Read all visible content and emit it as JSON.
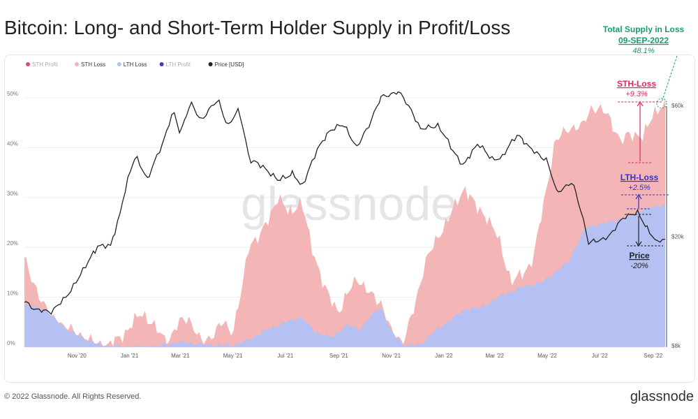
{
  "page": {
    "title": "Bitcoin: Long- and Short-Term Holder Supply in Profit/Loss",
    "footer_copyright": "© 2022 Glassnode. All Rights Reserved.",
    "footer_logo": "glassnode",
    "watermark": "glassnode"
  },
  "colors": {
    "sth_profit": "#e4457c",
    "sth_loss": "#f4b5b6",
    "lth_loss": "#b4c1f2",
    "lth_profit": "#3b3fc7",
    "price": "#222222",
    "annotation_green": "#1a9c6a",
    "annotation_pink": "#e4245c",
    "annotation_blue": "#3730c9"
  },
  "legend": [
    {
      "label": "STH Profit",
      "key": "sth_profit",
      "active": false
    },
    {
      "label": "STH Loss",
      "key": "sth_loss",
      "active": true
    },
    {
      "label": "LTH Loss",
      "key": "lth_loss",
      "active": true
    },
    {
      "label": "LTH Profit",
      "key": "lth_profit",
      "active": false
    },
    {
      "label": "Price [USD]",
      "key": "price",
      "active": true
    }
  ],
  "annotations": {
    "total_title": "Total Supply in Loss",
    "total_date": "09-SEP-2022",
    "total_value": "48.1%",
    "sth_title": "STH-Loss",
    "sth_value": "+9.3%",
    "lth_title": "LTH-Loss",
    "lth_value": "+2.5%",
    "price_title": "Price",
    "price_value": "-20%"
  },
  "chart_data": {
    "type": "area",
    "x_tick_labels": [
      "Nov '20",
      "Jan '21",
      "Mar '21",
      "May '21",
      "Jul '21",
      "Sep '21",
      "Nov '21",
      "Jan '22",
      "Mar '22",
      "May '22",
      "Jul '22",
      "Sep '22"
    ],
    "y_left_ticks": [
      "0%",
      "10%",
      "20%",
      "30%",
      "40%",
      "50%"
    ],
    "y_left_range": [
      0,
      50
    ],
    "y_right_ticks": [
      "$8k",
      "$20k",
      "$60k"
    ],
    "y_right_scale": "log",
    "y_right_range": [
      8000,
      70000
    ],
    "x_range": [
      "2020-09-01",
      "2022-09-15"
    ],
    "series": [
      {
        "name": "LTH Loss",
        "points": [
          [
            "2020-09-01",
            8.5
          ],
          [
            "2020-09-25",
            7.5
          ],
          [
            "2020-10-10",
            5
          ],
          [
            "2020-10-25",
            3
          ],
          [
            "2020-11-15",
            1.2
          ],
          [
            "2020-12-01",
            0.2
          ],
          [
            "2021-01-01",
            0
          ],
          [
            "2021-02-01",
            0.2
          ],
          [
            "2021-03-01",
            1
          ],
          [
            "2021-04-01",
            0.5
          ],
          [
            "2021-05-01",
            0.3
          ],
          [
            "2021-05-20",
            1.5
          ],
          [
            "2021-06-10",
            3.5
          ],
          [
            "2021-07-01",
            5
          ],
          [
            "2021-07-20",
            6
          ],
          [
            "2021-08-05",
            3
          ],
          [
            "2021-08-25",
            2
          ],
          [
            "2021-09-10",
            4.5
          ],
          [
            "2021-09-25",
            3.5
          ],
          [
            "2021-10-10",
            6.5
          ],
          [
            "2021-10-20",
            8
          ],
          [
            "2021-11-01",
            3
          ],
          [
            "2021-11-15",
            0.5
          ],
          [
            "2021-11-25",
            0.3
          ],
          [
            "2021-12-05",
            0.5
          ],
          [
            "2021-12-20",
            3
          ],
          [
            "2022-01-05",
            5
          ],
          [
            "2022-01-25",
            7.5
          ],
          [
            "2022-02-15",
            8
          ],
          [
            "2022-03-05",
            10
          ],
          [
            "2022-04-01",
            12
          ],
          [
            "2022-04-25",
            13
          ],
          [
            "2022-05-10",
            15
          ],
          [
            "2022-05-25",
            17
          ],
          [
            "2022-06-15",
            24
          ],
          [
            "2022-07-10",
            25
          ],
          [
            "2022-08-01",
            26
          ],
          [
            "2022-08-20",
            27.5
          ],
          [
            "2022-09-10",
            28.5
          ]
        ]
      },
      {
        "name": "STH Loss (stacked total)",
        "points": [
          [
            "2020-09-01",
            18
          ],
          [
            "2020-09-10",
            13
          ],
          [
            "2020-09-20",
            10
          ],
          [
            "2020-10-01",
            6
          ],
          [
            "2020-10-20",
            4
          ],
          [
            "2020-11-05",
            2
          ],
          [
            "2020-11-25",
            0.5
          ],
          [
            "2020-12-10",
            0.5
          ],
          [
            "2020-12-28",
            3
          ],
          [
            "2021-01-15",
            7
          ],
          [
            "2021-01-30",
            4
          ],
          [
            "2021-02-15",
            1
          ],
          [
            "2021-02-28",
            5
          ],
          [
            "2021-03-10",
            6
          ],
          [
            "2021-03-25",
            1
          ],
          [
            "2021-04-05",
            2
          ],
          [
            "2021-04-20",
            5
          ],
          [
            "2021-05-01",
            3
          ],
          [
            "2021-05-12",
            12
          ],
          [
            "2021-05-20",
            21
          ],
          [
            "2021-06-01",
            22
          ],
          [
            "2021-06-12",
            26
          ],
          [
            "2021-06-22",
            30
          ],
          [
            "2021-07-05",
            27
          ],
          [
            "2021-07-20",
            29
          ],
          [
            "2021-08-01",
            20
          ],
          [
            "2021-08-15",
            12
          ],
          [
            "2021-09-01",
            7
          ],
          [
            "2021-09-12",
            11
          ],
          [
            "2021-09-22",
            14
          ],
          [
            "2021-10-05",
            11
          ],
          [
            "2021-10-20",
            9
          ],
          [
            "2021-11-01",
            3
          ],
          [
            "2021-11-15",
            1
          ],
          [
            "2021-11-28",
            8
          ],
          [
            "2021-12-10",
            17
          ],
          [
            "2021-12-25",
            22
          ],
          [
            "2022-01-10",
            27
          ],
          [
            "2022-01-25",
            32
          ],
          [
            "2022-02-08",
            28
          ],
          [
            "2022-02-20",
            26
          ],
          [
            "2022-03-05",
            22
          ],
          [
            "2022-03-20",
            13
          ],
          [
            "2022-04-05",
            15
          ],
          [
            "2022-04-15",
            18
          ],
          [
            "2022-04-25",
            27
          ],
          [
            "2022-05-10",
            41
          ],
          [
            "2022-05-25",
            44
          ],
          [
            "2022-06-10",
            44
          ],
          [
            "2022-06-20",
            48
          ],
          [
            "2022-07-10",
            47
          ],
          [
            "2022-07-25",
            41
          ],
          [
            "2022-08-05",
            43
          ],
          [
            "2022-08-20",
            42
          ],
          [
            "2022-09-01",
            47
          ],
          [
            "2022-09-10",
            48.1
          ]
        ]
      },
      {
        "name": "Price [USD]",
        "points": [
          [
            "2020-09-01",
            11600
          ],
          [
            "2020-09-15",
            10800
          ],
          [
            "2020-10-01",
            10600
          ],
          [
            "2020-10-20",
            12000
          ],
          [
            "2020-11-10",
            15300
          ],
          [
            "2020-11-25",
            18500
          ],
          [
            "2020-12-10",
            18400
          ],
          [
            "2020-12-20",
            23500
          ],
          [
            "2021-01-08",
            39500
          ],
          [
            "2021-01-22",
            32000
          ],
          [
            "2021-02-10",
            44800
          ],
          [
            "2021-02-21",
            57000
          ],
          [
            "2021-03-01",
            47500
          ],
          [
            "2021-03-13",
            61000
          ],
          [
            "2021-03-25",
            53000
          ],
          [
            "2021-04-14",
            63000
          ],
          [
            "2021-04-25",
            50000
          ],
          [
            "2021-05-08",
            58000
          ],
          [
            "2021-05-20",
            38000
          ],
          [
            "2021-06-05",
            36000
          ],
          [
            "2021-06-22",
            32000
          ],
          [
            "2021-07-10",
            34000
          ],
          [
            "2021-07-20",
            30000
          ],
          [
            "2021-08-05",
            40000
          ],
          [
            "2021-08-22",
            49000
          ],
          [
            "2021-09-07",
            51000
          ],
          [
            "2021-09-22",
            42000
          ],
          [
            "2021-10-05",
            50000
          ],
          [
            "2021-10-20",
            64000
          ],
          [
            "2021-11-09",
            67500
          ],
          [
            "2021-11-25",
            57000
          ],
          [
            "2021-12-05",
            49000
          ],
          [
            "2021-12-25",
            50800
          ],
          [
            "2022-01-10",
            41800
          ],
          [
            "2022-01-24",
            36000
          ],
          [
            "2022-02-10",
            44000
          ],
          [
            "2022-02-25",
            38000
          ],
          [
            "2022-03-10",
            39000
          ],
          [
            "2022-03-28",
            47300
          ],
          [
            "2022-04-10",
            42000
          ],
          [
            "2022-04-30",
            38000
          ],
          [
            "2022-05-12",
            29000
          ],
          [
            "2022-05-30",
            31500
          ],
          [
            "2022-06-18",
            19000
          ],
          [
            "2022-07-01",
            19300
          ],
          [
            "2022-07-15",
            20500
          ],
          [
            "2022-07-30",
            23800
          ],
          [
            "2022-08-14",
            24300
          ],
          [
            "2022-08-25",
            21500
          ],
          [
            "2022-09-06",
            18800
          ],
          [
            "2022-09-10",
            19500
          ]
        ]
      }
    ]
  }
}
